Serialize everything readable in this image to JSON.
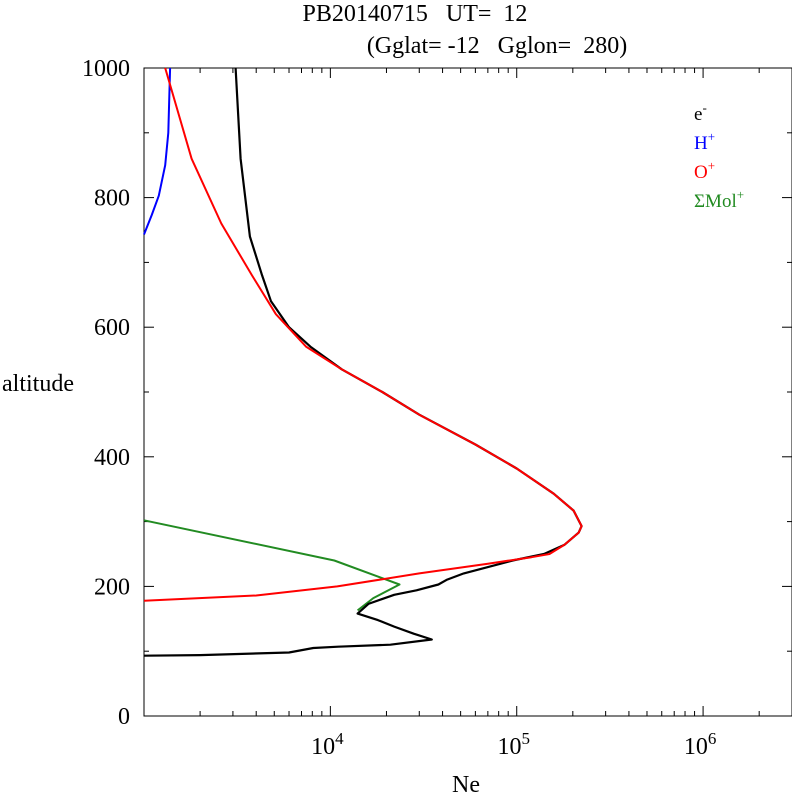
{
  "chart_data": {
    "type": "line",
    "title_line1": "PB20140715   UT=  12",
    "title_line2": "(Gglat= -12   Gglon=  280)",
    "xlabel": "Ne",
    "ylabel": "altitude",
    "x_scale": "log",
    "xlim": [
      1000,
      3000000
    ],
    "ylim": [
      0,
      1000
    ],
    "y_ticks": [
      0,
      200,
      400,
      600,
      800,
      1000
    ],
    "y_tick_labels": [
      "0",
      "200",
      "400",
      "600",
      "800",
      "1000"
    ],
    "x_ticks": [
      {
        "value": 10000,
        "base": "10",
        "exp": "4"
      },
      {
        "value": 100000,
        "base": "10",
        "exp": "5"
      },
      {
        "value": 1000000,
        "base": "10",
        "exp": "6"
      }
    ],
    "grid": false,
    "legend_position": "top-right",
    "series": [
      {
        "name": "e",
        "superscript": "-",
        "color": "#000000",
        "points": [
          [
            1000,
            93
          ],
          [
            2000,
            94
          ],
          [
            6000,
            98
          ],
          [
            8100,
            105
          ],
          [
            11000,
            107
          ],
          [
            21000,
            110
          ],
          [
            35000,
            118
          ],
          [
            28000,
            127
          ],
          [
            22000,
            138
          ],
          [
            18000,
            148
          ],
          [
            14000,
            158
          ],
          [
            16000,
            173
          ],
          [
            22000,
            187
          ],
          [
            29000,
            194
          ],
          [
            38000,
            203
          ],
          [
            42000,
            210
          ],
          [
            52000,
            220
          ],
          [
            95000,
            240
          ],
          [
            140000,
            250
          ],
          [
            180000,
            264
          ],
          [
            215000,
            283
          ],
          [
            223000,
            293
          ],
          [
            202000,
            317
          ],
          [
            158000,
            343
          ],
          [
            100000,
            382
          ],
          [
            60000,
            419
          ],
          [
            30000,
            465
          ],
          [
            19000,
            500
          ],
          [
            11500,
            535
          ],
          [
            7800,
            570
          ],
          [
            6000,
            600
          ],
          [
            4800,
            640
          ],
          [
            4300,
            680
          ],
          [
            3700,
            740
          ],
          [
            3300,
            860
          ],
          [
            3100,
            1000
          ]
        ]
      },
      {
        "name": "H",
        "superscript": "+",
        "color": "#0000ff",
        "points": [
          [
            1000,
            743
          ],
          [
            1100,
            773
          ],
          [
            1200,
            803
          ],
          [
            1300,
            850
          ],
          [
            1350,
            900
          ],
          [
            1380,
            1000
          ]
        ]
      },
      {
        "name": "O",
        "superscript": "+",
        "color": "#ff0000",
        "points": [
          [
            1000,
            178
          ],
          [
            4000,
            186
          ],
          [
            10900,
            200
          ],
          [
            30000,
            220
          ],
          [
            70000,
            235
          ],
          [
            120000,
            245
          ],
          [
            150000,
            250
          ],
          [
            180000,
            264
          ],
          [
            215000,
            283
          ],
          [
            223000,
            293
          ],
          [
            202000,
            317
          ],
          [
            158000,
            343
          ],
          [
            100000,
            382
          ],
          [
            60000,
            419
          ],
          [
            30000,
            465
          ],
          [
            19000,
            500
          ],
          [
            11500,
            535
          ],
          [
            7400,
            570
          ],
          [
            5100,
            620
          ],
          [
            3800,
            680
          ],
          [
            2600,
            760
          ],
          [
            1800,
            860
          ],
          [
            1300,
            1000
          ]
        ]
      },
      {
        "name": "ΣMol",
        "superscript": "+",
        "color": "#228b22",
        "points": [
          [
            1000,
            302
          ],
          [
            10500,
            240
          ],
          [
            23500,
            203
          ],
          [
            17000,
            182
          ],
          [
            14000,
            163
          ]
        ]
      }
    ]
  }
}
